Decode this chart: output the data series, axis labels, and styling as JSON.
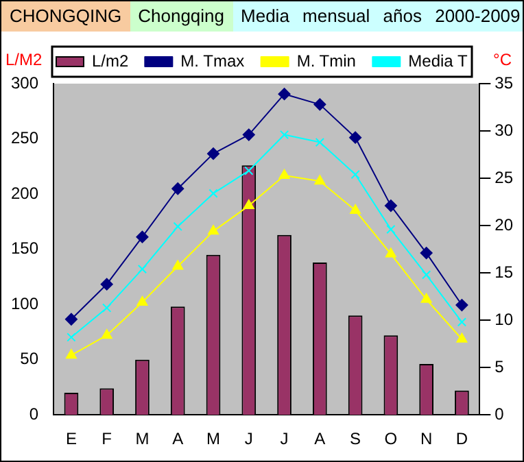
{
  "chart_data": {
    "type": "bar",
    "title": "CHONGQING",
    "subtitle": "Chongqing",
    "annotations": [
      "Media mensual años 2000-2009"
    ],
    "ylabel": "L/M2",
    "y2label": "°C",
    "categories": [
      "E",
      "F",
      "M",
      "A",
      "M",
      "J",
      "J",
      "A",
      "S",
      "O",
      "N",
      "D"
    ],
    "series": [
      {
        "name": "L/m2",
        "color": "#993366",
        "values": [
          20,
          24,
          50,
          98,
          145,
          226,
          163,
          138,
          90,
          72,
          46,
          22
        ]
      },
      {
        "name": "M. Tmax",
        "type": "line",
        "axis": "y2",
        "marker": "diamond",
        "color": "#000080",
        "values": [
          10.1,
          13.8,
          18.8,
          23.9,
          27.6,
          29.6,
          33.9,
          32.8,
          29.3,
          22.1,
          17.1,
          11.6
        ]
      },
      {
        "name": "M. Tmin",
        "type": "line",
        "axis": "y2",
        "marker": "triangle",
        "color": "#ffff00",
        "values": [
          6.3,
          8.4,
          11.9,
          15.7,
          19.4,
          22.1,
          25.3,
          24.7,
          21.6,
          17.0,
          12.2,
          8.0
        ]
      },
      {
        "name": "Media T",
        "type": "line",
        "axis": "y2",
        "marker": "cross",
        "color": "#00ffff",
        "values": [
          8.2,
          11.3,
          15.4,
          19.9,
          23.4,
          25.8,
          29.6,
          28.8,
          25.4,
          19.6,
          14.8,
          9.8
        ]
      }
    ],
    "ylim": [
      0,
      300
    ],
    "yticks": [
      0,
      50,
      100,
      150,
      200,
      250,
      300
    ],
    "y2lim": [
      0,
      35
    ],
    "y2ticks": [
      0,
      5,
      10,
      15,
      20,
      25,
      30,
      35
    ],
    "legend": "top",
    "grid": false
  }
}
